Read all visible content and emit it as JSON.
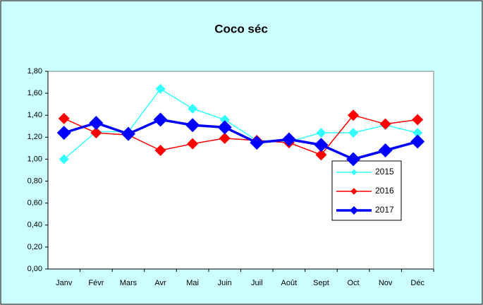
{
  "chart_data": {
    "type": "line",
    "title": "Coco séc",
    "categories": [
      "Janv",
      "Févr",
      "Mars",
      "Avr",
      "Mai",
      "Juin",
      "Juil",
      "Août",
      "Sept",
      "Oct",
      "Nov",
      "Déc"
    ],
    "series": [
      {
        "name": "2015",
        "color": "#33ffff",
        "values": [
          1.0,
          1.25,
          1.25,
          1.64,
          1.46,
          1.36,
          1.17,
          1.16,
          1.24,
          1.24,
          1.31,
          1.24
        ]
      },
      {
        "name": "2016",
        "color": "#ff0000",
        "values": [
          1.37,
          1.24,
          1.22,
          1.08,
          1.14,
          1.19,
          1.17,
          1.15,
          1.04,
          1.4,
          1.32,
          1.36
        ]
      },
      {
        "name": "2017",
        "color": "#0000ff",
        "values": [
          1.24,
          1.33,
          1.23,
          1.36,
          1.31,
          1.29,
          1.15,
          1.18,
          1.13,
          1.0,
          1.08,
          1.16
        ]
      }
    ],
    "ylim": [
      0,
      1.8
    ],
    "yticks": [
      {
        "value": 0,
        "label": "0,00"
      },
      {
        "value": 0.2,
        "label": "0,20"
      },
      {
        "value": 0.4,
        "label": "0,40"
      },
      {
        "value": 0.6,
        "label": "0,60"
      },
      {
        "value": 0.8,
        "label": "0,80"
      },
      {
        "value": 1,
        "label": "1,00"
      },
      {
        "value": 1.2,
        "label": "1,20"
      },
      {
        "value": 1.4,
        "label": "1,40"
      },
      {
        "value": 1.6,
        "label": "1,60"
      },
      {
        "value": 1.8,
        "label": "1,80"
      }
    ],
    "grid": false
  }
}
